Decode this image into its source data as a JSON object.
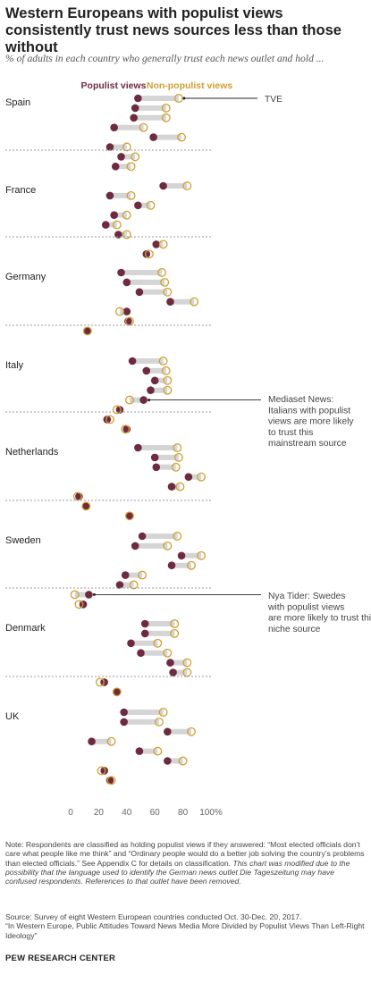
{
  "title": "Western Europeans with populist views consistently trust news sources less than those without",
  "subtitle": "% of adults in each country who generally trust each news outlet and hold ...",
  "legend": {
    "populist": "Populist views",
    "non_populist": "Non-populist views"
  },
  "colors": {
    "populist": "#6e2a3f",
    "non_populist": "#cfa032",
    "connector": "#d5d5d5",
    "divider": "#9a9a9a",
    "axis_text": "#666666"
  },
  "notes": {
    "note_plain": "Note: Respondents are classified as holding populist views if they answered: “Most elected officials don’t care what people like me think” and “Ordinary people would do a better job solving the country’s problems than elected officials.” See Appendix C for details on classification.",
    "note_italic": "This chart was modified due to the possibility that the language used to identify the German news outlet Die Tageszeitung may have confused respondents. References to that outlet have been removed.",
    "source_1": "Source: Survey of eight Western European countries conducted Oct. 30-Dec. 20, 2017.",
    "source_2": "“In Western Europe, Public Attitudes Toward News Media More Divided by Populist Views Than Left-Right Ideology”"
  },
  "footer": "PEW RESEARCH CENTER",
  "chart_data": {
    "type": "dot",
    "xlim": [
      0,
      100
    ],
    "x_ticks": [
      0,
      20,
      40,
      60,
      80,
      100
    ],
    "x_tick_labels": [
      "0",
      "20",
      "40",
      "60",
      "80",
      "100%"
    ],
    "series_names": [
      "Populist views",
      "Non-populist views"
    ],
    "countries": [
      {
        "name": "Spain",
        "outlets": [
          {
            "populist": 48,
            "non_populist": 77,
            "label": "TVE"
          },
          {
            "populist": 46,
            "non_populist": 68
          },
          {
            "populist": 45,
            "non_populist": 68
          },
          {
            "populist": 31,
            "non_populist": 52
          },
          {
            "populist": 59,
            "non_populist": 79
          },
          {
            "populist": 28,
            "non_populist": 40
          },
          {
            "populist": 36,
            "non_populist": 46
          },
          {
            "populist": 32,
            "non_populist": 43
          }
        ]
      },
      {
        "name": "France",
        "outlets": [
          {
            "populist": 66,
            "non_populist": 83
          },
          {
            "populist": 28,
            "non_populist": 43
          },
          {
            "populist": 48,
            "non_populist": 57
          },
          {
            "populist": 31,
            "non_populist": 40
          },
          {
            "populist": 25,
            "non_populist": 33
          },
          {
            "populist": 34,
            "non_populist": 40
          },
          {
            "populist": 61,
            "non_populist": 66
          },
          {
            "populist": 54,
            "non_populist": 56
          }
        ]
      },
      {
        "name": "Germany",
        "outlets": [
          {
            "populist": 36,
            "non_populist": 65
          },
          {
            "populist": 40,
            "non_populist": 67
          },
          {
            "populist": 49,
            "non_populist": 69
          },
          {
            "populist": 71,
            "non_populist": 88
          },
          {
            "populist": 40,
            "non_populist": 35
          },
          {
            "populist": 41,
            "non_populist": 42
          },
          {
            "populist": 12,
            "non_populist": 12
          }
        ]
      },
      {
        "name": "Italy",
        "outlets": [
          {
            "populist": 44,
            "non_populist": 66
          },
          {
            "populist": 54,
            "non_populist": 68
          },
          {
            "populist": 60,
            "non_populist": 69
          },
          {
            "populist": 57,
            "non_populist": 69
          },
          {
            "populist": 52,
            "non_populist": 42,
            "label": "Mediaset News"
          },
          {
            "populist": 35,
            "non_populist": 33
          },
          {
            "populist": 26,
            "non_populist": 28
          },
          {
            "populist": 40,
            "non_populist": 39
          }
        ]
      },
      {
        "name": "Netherlands",
        "outlets": [
          {
            "populist": 48,
            "non_populist": 76
          },
          {
            "populist": 60,
            "non_populist": 77
          },
          {
            "populist": 61,
            "non_populist": 75
          },
          {
            "populist": 84,
            "non_populist": 93
          },
          {
            "populist": 72,
            "non_populist": 78
          },
          {
            "populist": 6,
            "non_populist": 5
          },
          {
            "populist": 11,
            "non_populist": 11
          },
          {
            "populist": 42,
            "non_populist": 42
          }
        ]
      },
      {
        "name": "Sweden",
        "outlets": [
          {
            "populist": 51,
            "non_populist": 76
          },
          {
            "populist": 46,
            "non_populist": 69
          },
          {
            "populist": 79,
            "non_populist": 93
          },
          {
            "populist": 72,
            "non_populist": 86
          },
          {
            "populist": 39,
            "non_populist": 51
          },
          {
            "populist": 35,
            "non_populist": 45
          },
          {
            "populist": 13,
            "non_populist": 3,
            "label": "Nya Tider"
          },
          {
            "populist": 9,
            "non_populist": 6
          }
        ]
      },
      {
        "name": "Denmark",
        "outlets": [
          {
            "populist": 53,
            "non_populist": 74
          },
          {
            "populist": 53,
            "non_populist": 74
          },
          {
            "populist": 43,
            "non_populist": 62
          },
          {
            "populist": 50,
            "non_populist": 69
          },
          {
            "populist": 71,
            "non_populist": 83
          },
          {
            "populist": 73,
            "non_populist": 83
          },
          {
            "populist": 24,
            "non_populist": 21
          },
          {
            "populist": 33,
            "non_populist": 33
          }
        ]
      },
      {
        "name": "UK",
        "outlets": [
          {
            "populist": 38,
            "non_populist": 66
          },
          {
            "populist": 38,
            "non_populist": 63
          },
          {
            "populist": 69,
            "non_populist": 86
          },
          {
            "populist": 15,
            "non_populist": 29
          },
          {
            "populist": 49,
            "non_populist": 62
          },
          {
            "populist": 69,
            "non_populist": 80
          },
          {
            "populist": 24,
            "non_populist": 22
          },
          {
            "populist": 28,
            "non_populist": 29
          }
        ]
      }
    ],
    "annotations": [
      {
        "target": "TVE",
        "lines": [
          "TVE"
        ]
      },
      {
        "target": "Mediaset News",
        "lines": [
          "Mediaset News:",
          "Italians with populist",
          "views are more likely",
          "to trust this",
          "mainstream source"
        ]
      },
      {
        "target": "Nya Tider",
        "lines": [
          "Nya Tider: Swedes",
          "with populist views",
          "are more likely to trust this",
          "niche source"
        ]
      }
    ]
  }
}
